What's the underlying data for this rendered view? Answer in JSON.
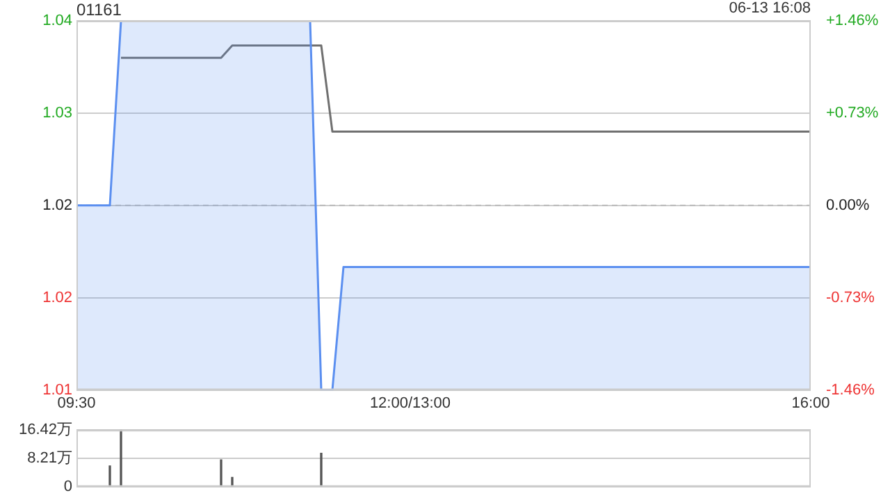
{
  "chart_data": [
    {
      "type": "line",
      "title": "01161",
      "annotations": [
        "06-13 16:08"
      ],
      "categories": [
        "09:30",
        null,
        null,
        null,
        null,
        null,
        null,
        null,
        null,
        null,
        null,
        null,
        null,
        null,
        null,
        null,
        null,
        null,
        null,
        null,
        null,
        null,
        null,
        null,
        null,
        null,
        null,
        null,
        null,
        null,
        "12:00/13:00",
        null,
        null,
        null,
        null,
        null,
        null,
        null,
        null,
        null,
        null,
        null,
        null,
        null,
        null,
        null,
        null,
        null,
        null,
        null,
        null,
        null,
        null,
        null,
        null,
        null,
        null,
        null,
        null,
        null,
        null,
        null,
        null,
        null,
        null,
        null,
        "16:00"
      ],
      "series": [
        {
          "type": "area",
          "color": "#5b8ff0",
          "values": [
            1.025,
            1.025,
            1.025,
            1.025,
            1.04,
            1.04,
            1.04,
            1.04,
            1.04,
            1.04,
            1.04,
            1.04,
            1.04,
            1.04,
            1.04,
            1.04,
            1.04,
            1.04,
            1.04,
            1.04,
            1.04,
            1.04,
            1.01,
            1.01,
            1.02,
            1.02,
            1.02,
            1.02,
            1.02,
            1.02,
            1.02,
            1.02,
            1.02,
            1.02,
            1.02,
            1.02,
            1.02,
            1.02,
            1.02,
            1.02,
            1.02,
            1.02,
            1.02,
            1.02,
            1.02,
            1.02,
            1.02,
            1.02,
            1.02,
            1.02,
            1.02,
            1.02,
            1.02,
            1.02,
            1.02,
            1.02,
            1.02,
            1.02,
            1.02,
            1.02,
            1.02,
            1.02,
            1.02,
            1.02,
            1.02,
            1.02,
            1.02
          ]
        },
        {
          "type": "line",
          "color": "#707070",
          "values": [
            null,
            null,
            null,
            null,
            1.037,
            1.037,
            1.037,
            1.037,
            1.037,
            1.037,
            1.037,
            1.037,
            1.037,
            1.037,
            1.038,
            1.038,
            1.038,
            1.038,
            1.038,
            1.038,
            1.038,
            1.038,
            1.038,
            1.031,
            1.031,
            1.031,
            1.031,
            1.031,
            1.031,
            1.031,
            1.031,
            1.031,
            1.031,
            1.031,
            1.031,
            1.031,
            1.031,
            1.031,
            1.031,
            1.031,
            1.031,
            1.031,
            1.031,
            1.031,
            1.031,
            1.031,
            1.031,
            1.031,
            1.031,
            1.031,
            1.031,
            1.031,
            1.031,
            1.031,
            1.031,
            1.031,
            1.031,
            1.031,
            1.031,
            1.031,
            1.031,
            1.031,
            1.031,
            1.031,
            1.031,
            1.031,
            1.031
          ]
        }
      ],
      "ylim": [
        1.01,
        1.04
      ],
      "yticks": [
        1.01,
        {
          "value": 1.0175,
          "label": "1.02"
        },
        {
          "value": 1.025,
          "label": "1.02"
        },
        {
          "value": 1.0325,
          "label": "1.03"
        },
        1.04
      ],
      "y2lim": [
        -1.46,
        1.46
      ],
      "y2ticks": [
        {
          "value": -1.46,
          "label": "-1.46%"
        },
        {
          "value": -0.73,
          "label": "-0.73%"
        },
        {
          "value": 0,
          "label": "0.00%"
        },
        {
          "value": 0.73,
          "label": "+0.73%"
        },
        {
          "value": 1.46,
          "label": "+1.46%"
        }
      ],
      "ref_lines": [
        {
          "axis": "y",
          "value": 1.025,
          "line_style": "dashed",
          "color": "#bbbbbb"
        }
      ],
      "grid": "y"
    },
    {
      "type": "bar",
      "color": "#555555",
      "categories": [
        null,
        null,
        null,
        null,
        null,
        null,
        null,
        null,
        null,
        null,
        null,
        null,
        null,
        null,
        null,
        null,
        null,
        null,
        null,
        null,
        null,
        null,
        null,
        null,
        null,
        null,
        null,
        null,
        null,
        null,
        null,
        null,
        null,
        null,
        null,
        null,
        null,
        null,
        null,
        null,
        null,
        null,
        null,
        null,
        null,
        null,
        null,
        null,
        null,
        null,
        null,
        null,
        null,
        null,
        null,
        null,
        null,
        null,
        null,
        null,
        null,
        null,
        null,
        null,
        null,
        null,
        null
      ],
      "values": [
        null,
        null,
        null,
        6.0,
        16.4,
        null,
        null,
        null,
        null,
        null,
        null,
        null,
        null,
        7.8,
        2.7,
        null,
        null,
        null,
        null,
        null,
        null,
        null,
        9.7,
        null,
        null,
        null,
        null,
        null,
        null,
        null,
        null,
        null,
        null,
        null,
        null,
        null,
        null,
        null,
        null,
        null,
        null,
        null,
        null,
        null,
        null,
        null,
        null,
        null,
        null,
        null,
        null,
        null,
        null,
        null,
        null,
        null,
        null,
        null,
        null,
        null,
        null,
        null,
        null,
        null,
        null,
        null,
        null
      ],
      "ylim": [
        0,
        16.42
      ],
      "yticks": [
        {
          "value": 0,
          "label": "0"
        },
        {
          "value": 8.21,
          "label": "8.21万"
        },
        {
          "value": 16.42,
          "label": "16.42万"
        }
      ],
      "grid": "y",
      "tick_labels": "y"
    }
  ]
}
